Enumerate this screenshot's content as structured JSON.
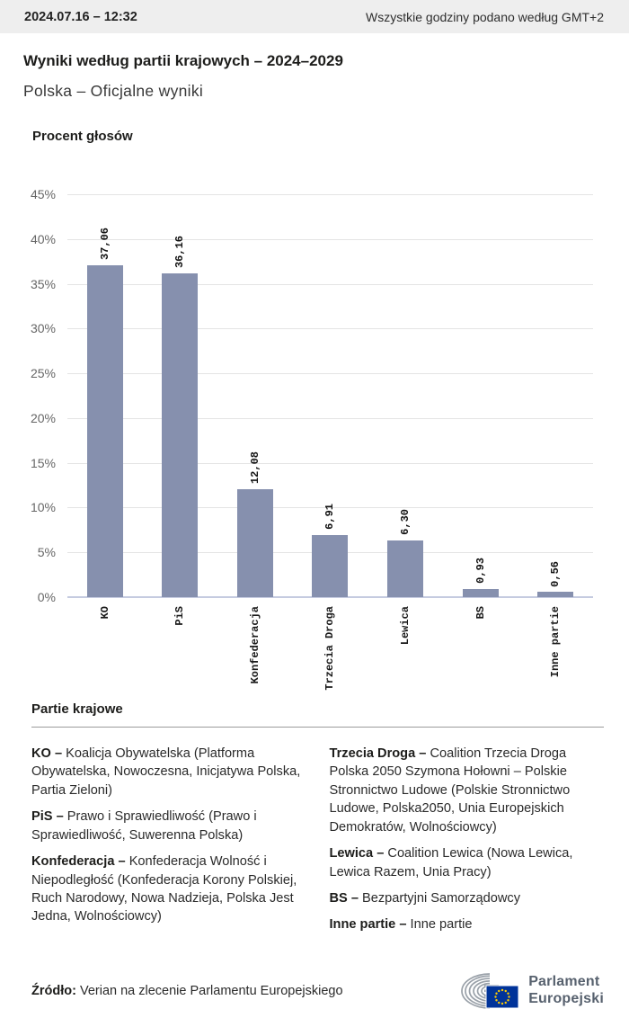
{
  "header": {
    "timestamp": "2024.07.16 – 12:32",
    "timezone_note": "Wszystkie godziny podano według GMT+2"
  },
  "title": "Wyniki według partii krajowych – 2024–2029",
  "subtitle": "Polska – Oficjalne wyniki",
  "chart_data": {
    "type": "bar",
    "title": "Procent głosów",
    "categories": [
      "KO",
      "PiS",
      "Konfederacja",
      "Trzecia Droga",
      "Lewica",
      "BS",
      "Inne partie"
    ],
    "values": [
      37.06,
      36.16,
      12.08,
      6.91,
      6.3,
      0.93,
      0.56
    ],
    "value_labels": [
      "37,06",
      "36,16",
      "12,08",
      "6,91",
      "6,30",
      "0,93",
      "0,56"
    ],
    "ylim": [
      0,
      45
    ],
    "ytick_labels": [
      "45%",
      "40%",
      "35%",
      "30%",
      "25%",
      "20%",
      "15%",
      "10%",
      "5%",
      "0%"
    ],
    "grid": true,
    "legend_position": "none",
    "bar_color": "#8690ae",
    "grid_color": "#e4e4e4",
    "baseline_color": "#c5cbe0"
  },
  "legend": {
    "heading": "Partie krajowe",
    "columns": [
      [
        {
          "name": "KO –",
          "description": "Koalicja Obywatelska (Platforma Obywatelska, Nowoczesna, Inicjatywa Polska, Partia Zieloni)"
        },
        {
          "name": "PiS –",
          "description": "Prawo i Sprawiedliwość (Prawo i Sprawiedliwość, Suwerenna Polska)"
        },
        {
          "name": "Konfederacja –",
          "description": "Konfederacja Wolność i Niepodległość (Konfederacja Korony Polskiej, Ruch Narodowy, Nowa Nadzieja, Polska Jest Jedna, Wolnościowcy)"
        }
      ],
      [
        {
          "name": "Trzecia Droga –",
          "description": "Coalition Trzecia Droga Polska 2050 Szymona Hołowni – Polskie Stronnictwo Ludowe (Polskie Stronnictwo Ludowe, Polska2050, Unia Europejskich Demokratów, Wolnościowcy)"
        },
        {
          "name": "Lewica –",
          "description": "Coalition Lewica (Nowa Lewica, Lewica Razem, Unia Pracy)"
        },
        {
          "name": "BS –",
          "description": "Bezpartyjni Samorządowcy"
        },
        {
          "name": "Inne partie –",
          "description": "Inne partie"
        }
      ]
    ]
  },
  "footer": {
    "source_label": "Źródło:",
    "source_text": " Verian na zlecenie Parlamentu Europejskiego",
    "logo_line1": "Parlament",
    "logo_line2": "Europejski",
    "flag_blue": "#003399",
    "star_yellow": "#ffcc00",
    "arc_gray": "#9aa1a9"
  }
}
